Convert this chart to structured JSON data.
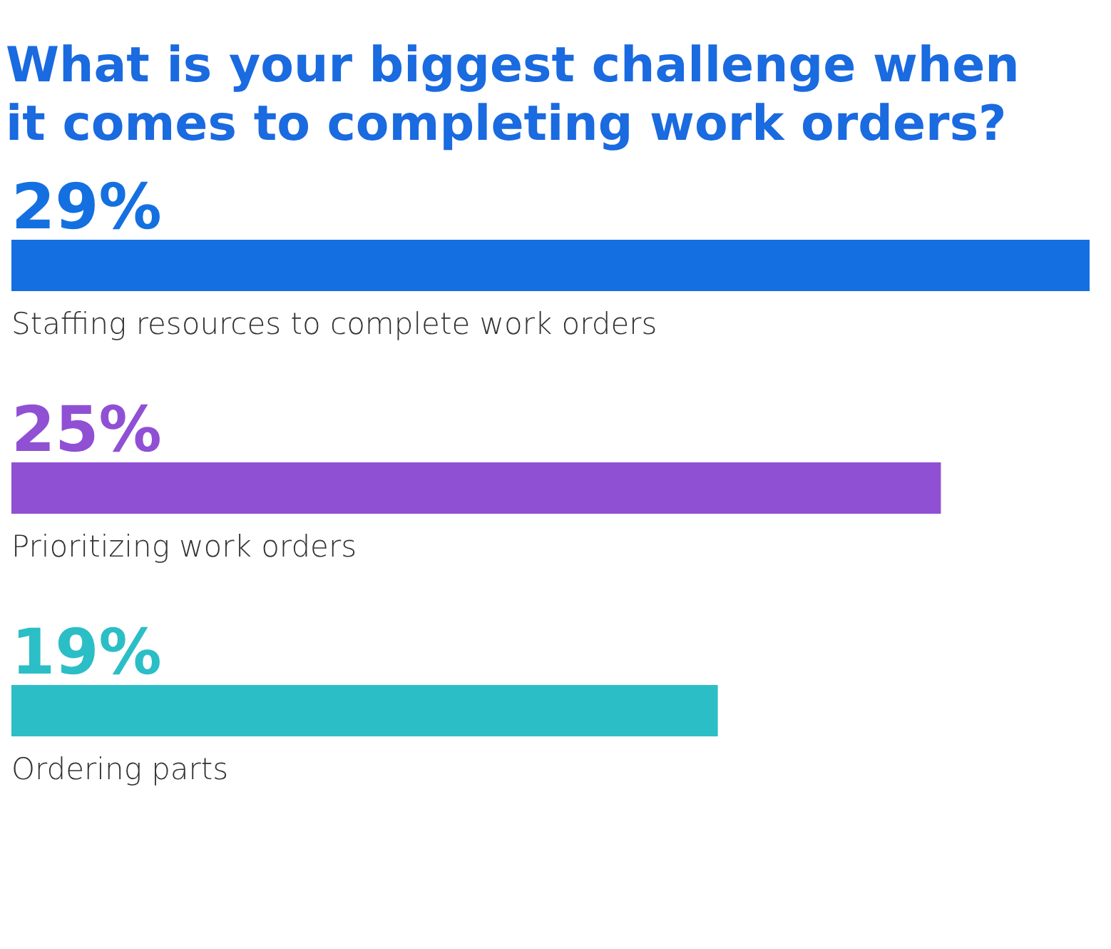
{
  "chart_data": {
    "type": "bar",
    "orientation": "horizontal",
    "title": "What is your biggest challenge when it comes to completing work orders?",
    "categories": [
      "Staffing resources to complete work orders",
      "Prioritizing work orders",
      "Ordering parts"
    ],
    "values": [
      29,
      25,
      19
    ],
    "colors": [
      "#1470e0",
      "#9050d4",
      "#2bbec6"
    ],
    "value_labels": [
      "29%",
      "25%",
      "19%"
    ],
    "grid": false,
    "legend": false
  }
}
